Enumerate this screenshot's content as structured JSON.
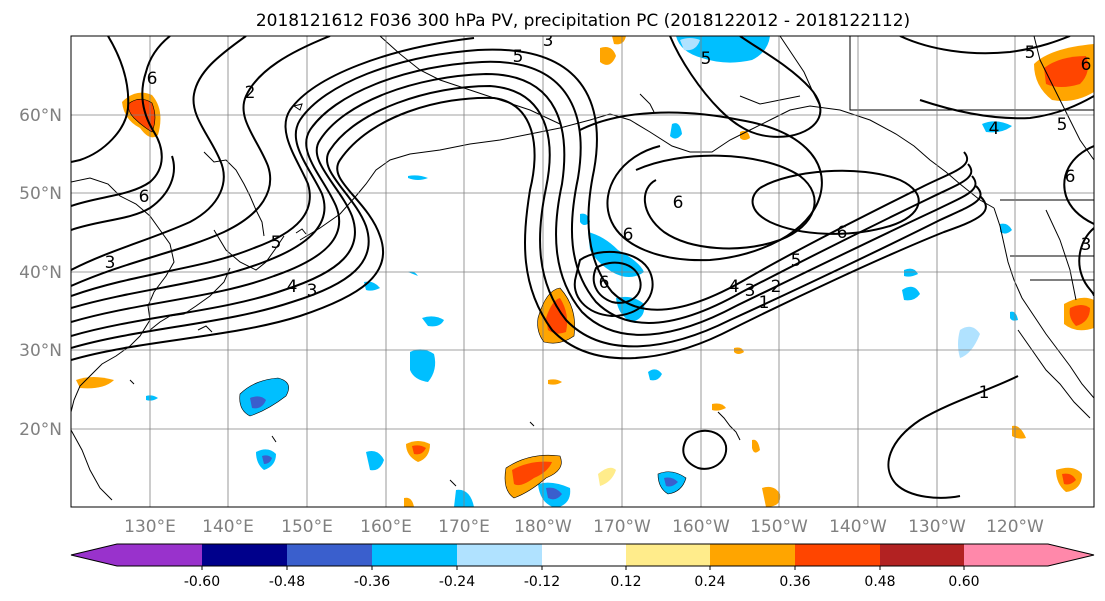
{
  "title": "2018121612 F036 300 hPa PV, precipitation PC (2018122012 - 2018122112)",
  "map": {
    "lon_range": [
      121,
      251
    ],
    "lat_range": [
      10,
      70
    ],
    "lat_ticks": [
      {
        "value": 60,
        "label": "60°N"
      },
      {
        "value": 50,
        "label": "50°N"
      },
      {
        "value": 40,
        "label": "40°N"
      },
      {
        "value": 30,
        "label": "30°N"
      },
      {
        "value": 20,
        "label": "20°N"
      }
    ],
    "lon_ticks": [
      {
        "value": 130,
        "label": "130°E"
      },
      {
        "value": 140,
        "label": "140°E"
      },
      {
        "value": 150,
        "label": "150°E"
      },
      {
        "value": 160,
        "label": "160°E"
      },
      {
        "value": 170,
        "label": "170°E"
      },
      {
        "value": 180,
        "label": "180°W"
      },
      {
        "value": 190,
        "label": "170°W"
      },
      {
        "value": 200,
        "label": "160°W"
      },
      {
        "value": 210,
        "label": "150°W"
      },
      {
        "value": 220,
        "label": "140°W"
      },
      {
        "value": 230,
        "label": "130°W"
      },
      {
        "value": 240,
        "label": "120°W"
      }
    ],
    "grid": true,
    "contour_labels": [
      "1",
      "2",
      "3",
      "4",
      "5",
      "6"
    ]
  },
  "colorbar": {
    "ticks": [
      "-0.60",
      "-0.48",
      "-0.36",
      "-0.24",
      "-0.12",
      "0.12",
      "0.24",
      "0.36",
      "0.48",
      "0.60"
    ],
    "colors": [
      "#9932cc",
      "#00008b",
      "#3a5fcd",
      "#00bfff",
      "#b0e2ff",
      "#ffffff",
      "#ffec8b",
      "#ffa500",
      "#ff4500",
      "#b22222",
      "#ff88aa"
    ]
  }
}
